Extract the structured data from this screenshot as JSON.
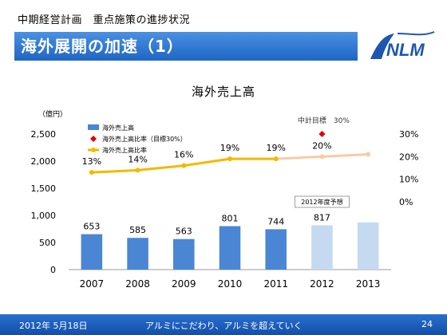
{
  "header": {
    "subtitle": "中期経営計画　重点施策の進捗状況",
    "title": "海外展開の加速（1）",
    "logo_text": "NLM"
  },
  "footer": {
    "date": "2012年 5月18日",
    "slogan": "アルミにこだわり、アルミを超えていく",
    "page": "24"
  },
  "chart_data": {
    "type": "bar",
    "title": "海外売上高",
    "ylabel": "（億円）",
    "categories": [
      "2007",
      "2008",
      "2009",
      "2010",
      "2011",
      "2012",
      "2013"
    ],
    "ylim": [
      0,
      2500
    ],
    "yticks": [
      "0",
      "500",
      "1,000",
      "1,500",
      "2,000",
      "2,500"
    ],
    "y2ticks": [
      "0%",
      "10%",
      "20%",
      "30%"
    ],
    "y2lim": [
      -30,
      30
    ],
    "series": [
      {
        "name": "海外売上高",
        "type": "bar",
        "values": [
          653,
          585,
          563,
          801,
          744,
          817,
          870
        ],
        "labels": [
          "653",
          "585",
          "563",
          "801",
          "744",
          "817",
          ""
        ],
        "color": "#4a86d4",
        "forecast_color": "#c5d9f1"
      },
      {
        "name": "海外売上高比率（目標30%）",
        "type": "marker",
        "x": "2012",
        "value": 30,
        "color": "#e00000"
      },
      {
        "name": "海外売上高比率",
        "type": "line",
        "values": [
          13,
          14,
          16,
          19,
          19,
          20,
          21
        ],
        "labels": [
          "13%",
          "14%",
          "16%",
          "19%",
          "19%",
          "20%",
          ""
        ],
        "color": "#f5b800",
        "forecast_color": "#f8cba8"
      }
    ],
    "annotations": {
      "target_label": "中計目標　30%",
      "forecast_label": "2012年度予想"
    }
  }
}
